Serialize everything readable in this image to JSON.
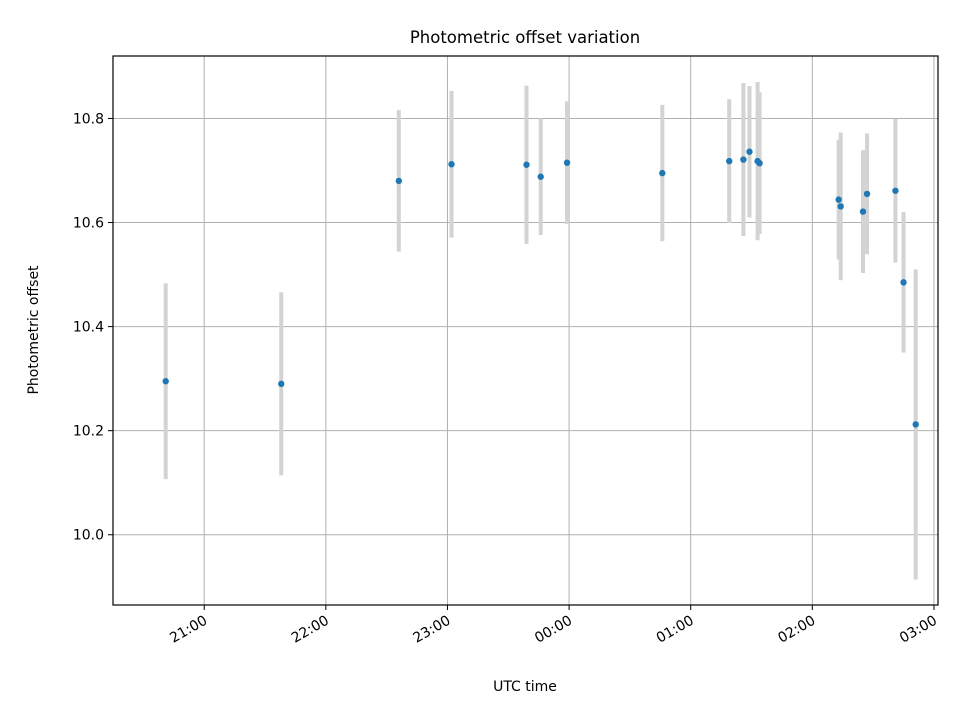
{
  "chart_data": {
    "type": "scatter",
    "title": "Photometric offset variation",
    "xlabel": "UTC time",
    "ylabel": "Photometric offset",
    "x_axis_type": "time",
    "xlim": [
      "20:15",
      "03:02"
    ],
    "ylim": [
      9.865,
      10.92
    ],
    "x_ticks": [
      "21:00",
      "22:00",
      "23:00",
      "00:00",
      "01:00",
      "02:00",
      "03:00"
    ],
    "y_ticks": [
      10.0,
      10.2,
      10.4,
      10.6,
      10.8
    ],
    "grid": true,
    "marker_color": "#1f77b4",
    "errorbar_color": "#d3d3d3",
    "points": [
      {
        "time": "20:41",
        "y": 10.295,
        "err": 0.188
      },
      {
        "time": "21:38",
        "y": 10.29,
        "err": 0.176
      },
      {
        "time": "22:36",
        "y": 10.68,
        "err": 0.136
      },
      {
        "time": "23:02",
        "y": 10.712,
        "err": 0.141
      },
      {
        "time": "23:39",
        "y": 10.711,
        "err": 0.152
      },
      {
        "time": "23:46",
        "y": 10.688,
        "err": 0.112
      },
      {
        "time": "23:59",
        "y": 10.715,
        "err": 0.118
      },
      {
        "time": "00:46",
        "y": 10.695,
        "err": 0.131
      },
      {
        "time": "01:19",
        "y": 10.718,
        "err": 0.119
      },
      {
        "time": "01:26",
        "y": 10.721,
        "err": 0.147
      },
      {
        "time": "01:29",
        "y": 10.736,
        "err": 0.126
      },
      {
        "time": "01:33",
        "y": 10.718,
        "err": 0.152
      },
      {
        "time": "01:34",
        "y": 10.714,
        "err": 0.136
      },
      {
        "time": "02:13",
        "y": 10.644,
        "err": 0.115
      },
      {
        "time": "02:14",
        "y": 10.631,
        "err": 0.142
      },
      {
        "time": "02:25",
        "y": 10.621,
        "err": 0.118
      },
      {
        "time": "02:27",
        "y": 10.655,
        "err": 0.116
      },
      {
        "time": "02:41",
        "y": 10.661,
        "err": 0.138
      },
      {
        "time": "02:45",
        "y": 10.485,
        "err": 0.135
      },
      {
        "time": "02:51",
        "y": 10.212,
        "err": 0.298
      }
    ]
  }
}
